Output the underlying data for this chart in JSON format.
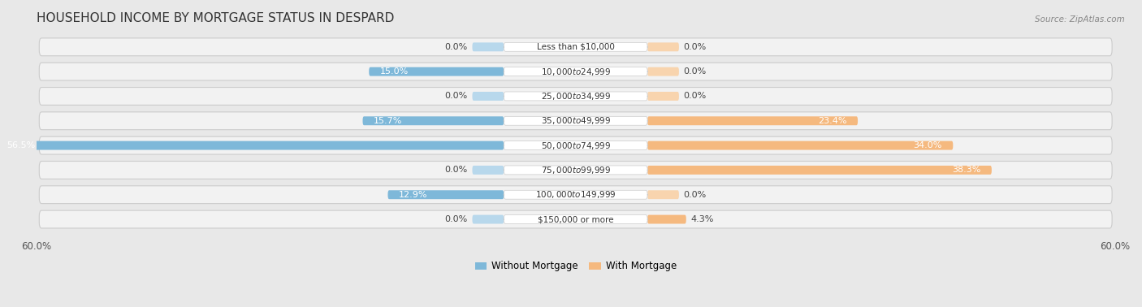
{
  "title": "HOUSEHOLD INCOME BY MORTGAGE STATUS IN DESPARD",
  "source": "Source: ZipAtlas.com",
  "categories": [
    "Less than $10,000",
    "$10,000 to $24,999",
    "$25,000 to $34,999",
    "$35,000 to $49,999",
    "$50,000 to $74,999",
    "$75,000 to $99,999",
    "$100,000 to $149,999",
    "$150,000 or more"
  ],
  "without_mortgage": [
    0.0,
    15.0,
    0.0,
    15.7,
    56.5,
    0.0,
    12.9,
    0.0
  ],
  "with_mortgage": [
    0.0,
    0.0,
    0.0,
    23.4,
    34.0,
    38.3,
    0.0,
    4.3
  ],
  "color_without": "#7eb8d9",
  "color_without_light": "#b8d8ec",
  "color_with": "#f5b97f",
  "color_with_light": "#f8d4ae",
  "axis_limit": 60.0,
  "legend_without": "Without Mortgage",
  "legend_with": "With Mortgage",
  "background_color": "#e8e8e8",
  "row_bg_color": "#f2f2f2",
  "title_fontsize": 11,
  "label_fontsize": 8,
  "tick_fontsize": 8.5,
  "cat_label_fontsize": 7.5
}
